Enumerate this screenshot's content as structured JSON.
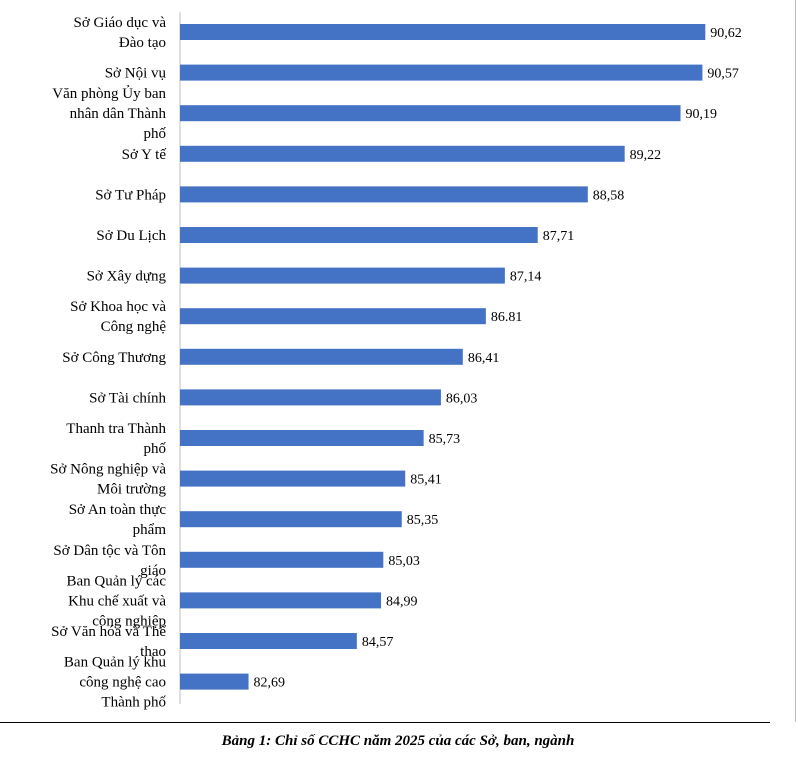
{
  "chart_data": {
    "type": "bar",
    "orientation": "horizontal",
    "categories": [
      [
        "Sở Giáo dục và",
        "Đào tạo"
      ],
      [
        "Sở Nội vụ"
      ],
      [
        "Văn phòng Ủy ban",
        "nhân dân Thành",
        "phố"
      ],
      [
        "Sở Y tế"
      ],
      [
        "Sở Tư Pháp"
      ],
      [
        "Sở Du Lịch"
      ],
      [
        "Sở Xây dựng"
      ],
      [
        "Sở Khoa học và",
        "Công nghệ"
      ],
      [
        "Sở Công Thương"
      ],
      [
        "Sở Tài chính"
      ],
      [
        "Thanh tra Thành",
        "phố"
      ],
      [
        "Sở Nông nghiệp và",
        "Môi trường"
      ],
      [
        "Sở An toàn thực",
        "phẩm"
      ],
      [
        "Sở Dân tộc và Tôn",
        "giáo"
      ],
      [
        "Ban Quản lý các",
        "Khu chế xuất và",
        "công nghiệp"
      ],
      [
        "Sở Văn hóa và Thể",
        "thao"
      ],
      [
        "Ban Quản lý khu",
        "công nghệ cao",
        "Thành phố"
      ]
    ],
    "values": [
      90.62,
      90.57,
      90.19,
      89.22,
      88.58,
      87.71,
      87.14,
      86.81,
      86.41,
      86.03,
      85.73,
      85.41,
      85.35,
      85.03,
      84.99,
      84.57,
      82.69
    ],
    "value_labels": [
      "90,62",
      "90,57",
      "90,19",
      "89,22",
      "88,58",
      "87,71",
      "87,14",
      "86.81",
      "86,41",
      "86,03",
      "85,73",
      "85,41",
      "85,35",
      "85,03",
      "84,99",
      "84,57",
      "82,69"
    ],
    "xlim": [
      81.5,
      91.0
    ],
    "bar_color": "#4472C4",
    "grid": false,
    "legend": "none"
  },
  "caption": "Bảng 1: Chỉ số CCHC năm 2025 của các Sở, ban, ngành"
}
